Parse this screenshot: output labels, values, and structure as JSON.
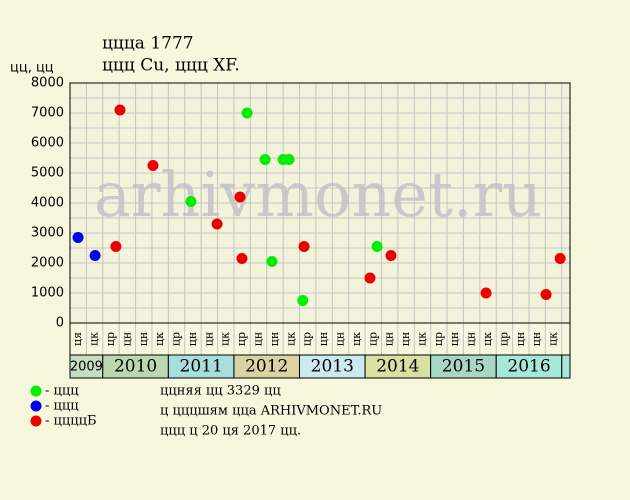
{
  "chart_data": {
    "type": "scatter",
    "title": "ццца 1777",
    "subtitle": "ццц Cu, ццц XF.",
    "y_label": "цц, цц",
    "watermark": "arhivmonet.ru",
    "categories": [
      "ця",
      "цк",
      "цр",
      "цн",
      "цн",
      "цк",
      "цр",
      "цн",
      "цн",
      "цк",
      "цр",
      "цн",
      "цн",
      "цк",
      "цр",
      "цн",
      "цн",
      "цк",
      "цр",
      "цн",
      "цн",
      "цк",
      "цр",
      "цн",
      "цн",
      "цк",
      "цр",
      "цн",
      "цн",
      "цк"
    ],
    "x_groups": [
      "2009",
      "2010",
      "2011",
      "2012",
      "2013",
      "2014",
      "2015",
      "2016"
    ],
    "xlim": [
      0,
      30.5
    ],
    "ylim": [
      0,
      8000
    ],
    "yticks": [
      0,
      1000,
      2000,
      3000,
      4000,
      5000,
      6000,
      7000,
      8000
    ],
    "minor_yticks": [
      500,
      1500,
      2500,
      3500,
      4500,
      5500,
      6500,
      7500
    ],
    "grid": true,
    "series": [
      {
        "name": "- ццц",
        "color": "#00ee00",
        "x": [
          7.38,
          10.8,
          11.9,
          12.32,
          13.0,
          13.36,
          14.2,
          18.73
        ],
        "values": [
          4050,
          7000,
          5450,
          2050,
          5450,
          5450,
          750,
          2550
        ]
      },
      {
        "name": "- ццц",
        "color": "#0000ee",
        "x": [
          0.49,
          1.53
        ],
        "values": [
          2850,
          2250
        ]
      },
      {
        "name": "- ццццБ",
        "color": "#ee0000",
        "x": [
          2.8,
          3.05,
          5.06,
          8.97,
          10.37,
          10.49,
          14.28,
          18.3,
          19.58,
          25.38,
          29.04,
          29.9
        ],
        "values": [
          2550,
          7100,
          5250,
          3300,
          4200,
          2150,
          2550,
          1500,
          2250,
          1000,
          950,
          2150
        ]
      }
    ],
    "notes": [
      "ццняя цц 3329 цц",
      "ц цццшям цца ARHIVMONET.RU",
      "ццц ц 20 ця 2017 цц."
    ]
  }
}
